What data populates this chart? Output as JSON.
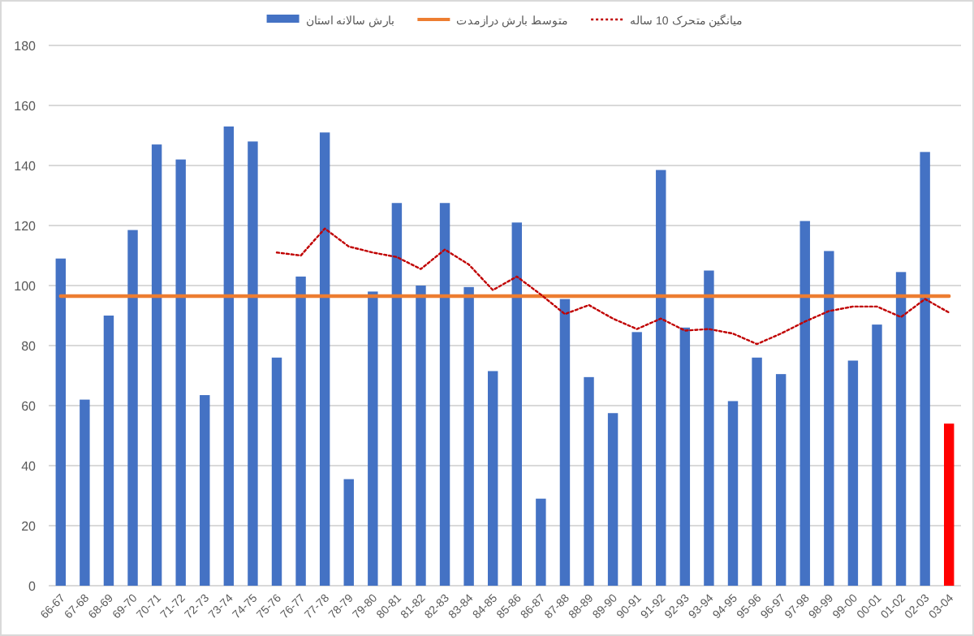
{
  "chart_data": {
    "type": "bar",
    "categories": [
      "66-67",
      "67-68",
      "68-69",
      "69-70",
      "70-71",
      "71-72",
      "72-73",
      "73-74",
      "74-75",
      "75-76",
      "76-77",
      "77-78",
      "78-79",
      "79-80",
      "80-81",
      "81-82",
      "82-83",
      "83-84",
      "84-85",
      "85-86",
      "86-87",
      "87-88",
      "88-89",
      "89-90",
      "90-91",
      "91-92",
      "92-93",
      "93-94",
      "94-95",
      "95-96",
      "96-97",
      "97-98",
      "98-99",
      "99-00",
      "00-01",
      "01-02",
      "02-03",
      "03-04"
    ],
    "series": [
      {
        "name": "بارش سالانه استان",
        "color": "#4472c4",
        "colors": [
          "#4472c4",
          "#4472c4",
          "#4472c4",
          "#4472c4",
          "#4472c4",
          "#4472c4",
          "#4472c4",
          "#4472c4",
          "#4472c4",
          "#4472c4",
          "#4472c4",
          "#4472c4",
          "#4472c4",
          "#4472c4",
          "#4472c4",
          "#4472c4",
          "#4472c4",
          "#4472c4",
          "#4472c4",
          "#4472c4",
          "#4472c4",
          "#4472c4",
          "#4472c4",
          "#4472c4",
          "#4472c4",
          "#4472c4",
          "#4472c4",
          "#4472c4",
          "#4472c4",
          "#4472c4",
          "#4472c4",
          "#4472c4",
          "#4472c4",
          "#4472c4",
          "#4472c4",
          "#4472c4",
          "#4472c4",
          "#ff0000"
        ],
        "values": [
          109,
          62,
          90,
          118.5,
          147,
          142,
          63.5,
          153,
          148,
          76,
          103,
          151,
          35.5,
          98,
          127.5,
          100,
          127.5,
          99.5,
          71.5,
          121,
          29,
          95.5,
          69.5,
          57.5,
          84.5,
          138.5,
          86,
          105,
          61.5,
          76,
          70.5,
          121.5,
          111.5,
          75,
          87,
          104.5,
          144.5,
          54
        ]
      },
      {
        "name": "متوسط بارش درازمدت",
        "type": "line",
        "color": "#ed7d31",
        "line_style": "solid",
        "values": [
          96.5,
          96.5,
          96.5,
          96.5,
          96.5,
          96.5,
          96.5,
          96.5,
          96.5,
          96.5,
          96.5,
          96.5,
          96.5,
          96.5,
          96.5,
          96.5,
          96.5,
          96.5,
          96.5,
          96.5,
          96.5,
          96.5,
          96.5,
          96.5,
          96.5,
          96.5,
          96.5,
          96.5,
          96.5,
          96.5,
          96.5,
          96.5,
          96.5,
          96.5,
          96.5,
          96.5,
          96.5,
          96.5
        ]
      },
      {
        "name": "میانگین متحرک 10 ساله",
        "type": "line",
        "color": "#c00000",
        "line_style": "dotted",
        "values": [
          null,
          null,
          null,
          null,
          null,
          null,
          null,
          null,
          null,
          111,
          110,
          119,
          113,
          111,
          109.5,
          105.5,
          112,
          107,
          98.5,
          103,
          97,
          90.5,
          93.5,
          89,
          85.5,
          89,
          85,
          85.5,
          84,
          80.5,
          84,
          88,
          91.5,
          93,
          93,
          89.5,
          95.5,
          91
        ]
      }
    ],
    "ylim": [
      0,
      180
    ],
    "yticks": [
      0,
      20,
      40,
      60,
      80,
      100,
      120,
      140,
      160,
      180
    ],
    "grid": "y",
    "legend": "top"
  }
}
